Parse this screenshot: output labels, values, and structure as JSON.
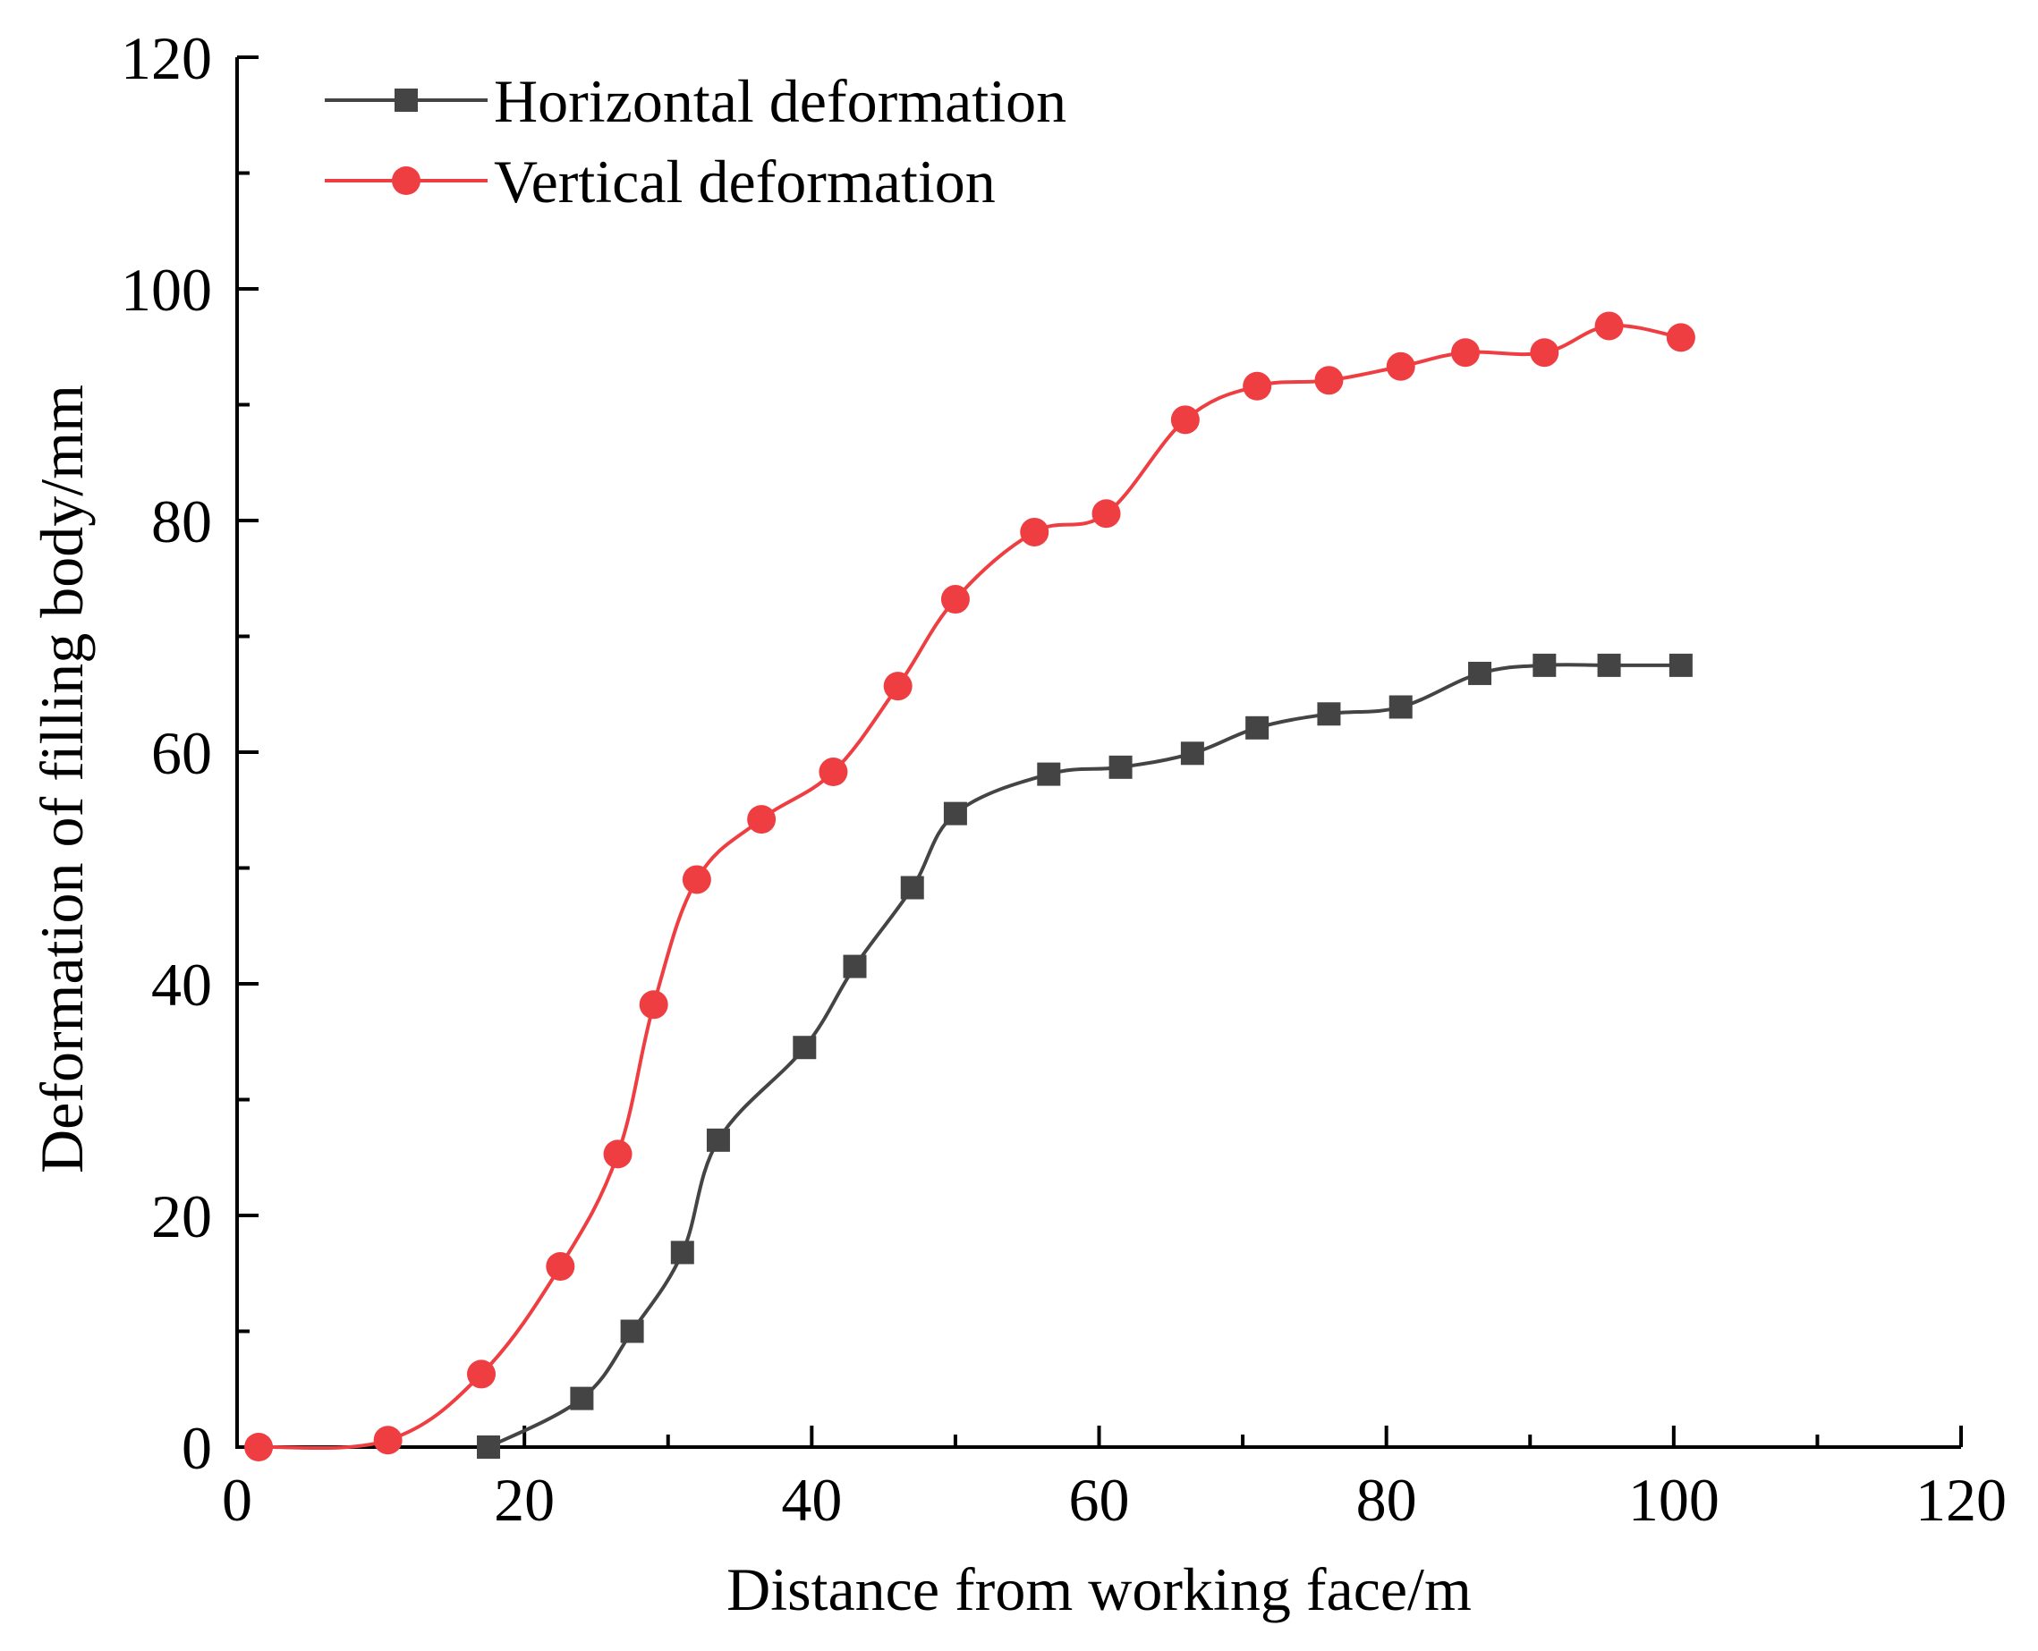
{
  "chart_data": {
    "type": "line",
    "title": "",
    "xlabel": "Distance from working face/m",
    "ylabel": "Deformation of filling body/mm",
    "xlim": [
      0,
      120
    ],
    "ylim": [
      0,
      120
    ],
    "x_ticks": [
      0,
      20,
      40,
      60,
      80,
      100,
      120
    ],
    "y_ticks": [
      0,
      20,
      40,
      60,
      80,
      100,
      120
    ],
    "x_minor_step": 10,
    "y_minor_step": 10,
    "grid": false,
    "legend_position": "top-left",
    "series": [
      {
        "name": "Horizontal deformation",
        "color": "#444444",
        "marker": "square",
        "points": [
          [
            17.5,
            0
          ],
          [
            24,
            4.2
          ],
          [
            27.5,
            10
          ],
          [
            31,
            16.8
          ],
          [
            33.5,
            26.5
          ],
          [
            39.5,
            34.5
          ],
          [
            43,
            41.5
          ],
          [
            47,
            48.3
          ],
          [
            50,
            54.7
          ],
          [
            56.5,
            58.1
          ],
          [
            61.5,
            58.7
          ],
          [
            66.5,
            59.9
          ],
          [
            71,
            62.1
          ],
          [
            76,
            63.3
          ],
          [
            81,
            63.9
          ],
          [
            86.5,
            66.8
          ],
          [
            91,
            67.5
          ],
          [
            95.5,
            67.5
          ],
          [
            100.5,
            67.5
          ]
        ]
      },
      {
        "name": "Vertical deformation",
        "color": "#ef3e42",
        "marker": "circle",
        "points": [
          [
            1.5,
            0
          ],
          [
            10.5,
            0.6
          ],
          [
            17,
            6.3
          ],
          [
            22.5,
            15.6
          ],
          [
            26.5,
            25.3
          ],
          [
            29,
            38.2
          ],
          [
            32,
            49
          ],
          [
            36.5,
            54.2
          ],
          [
            41.5,
            58.3
          ],
          [
            46,
            65.7
          ],
          [
            50,
            73.2
          ],
          [
            55.5,
            79
          ],
          [
            60.5,
            80.6
          ],
          [
            66,
            88.7
          ],
          [
            71,
            91.6
          ],
          [
            76,
            92.1
          ],
          [
            81,
            93.3
          ],
          [
            85.5,
            94.5
          ],
          [
            91,
            94.5
          ],
          [
            95.5,
            96.8
          ],
          [
            100.5,
            95.8
          ]
        ]
      }
    ]
  }
}
